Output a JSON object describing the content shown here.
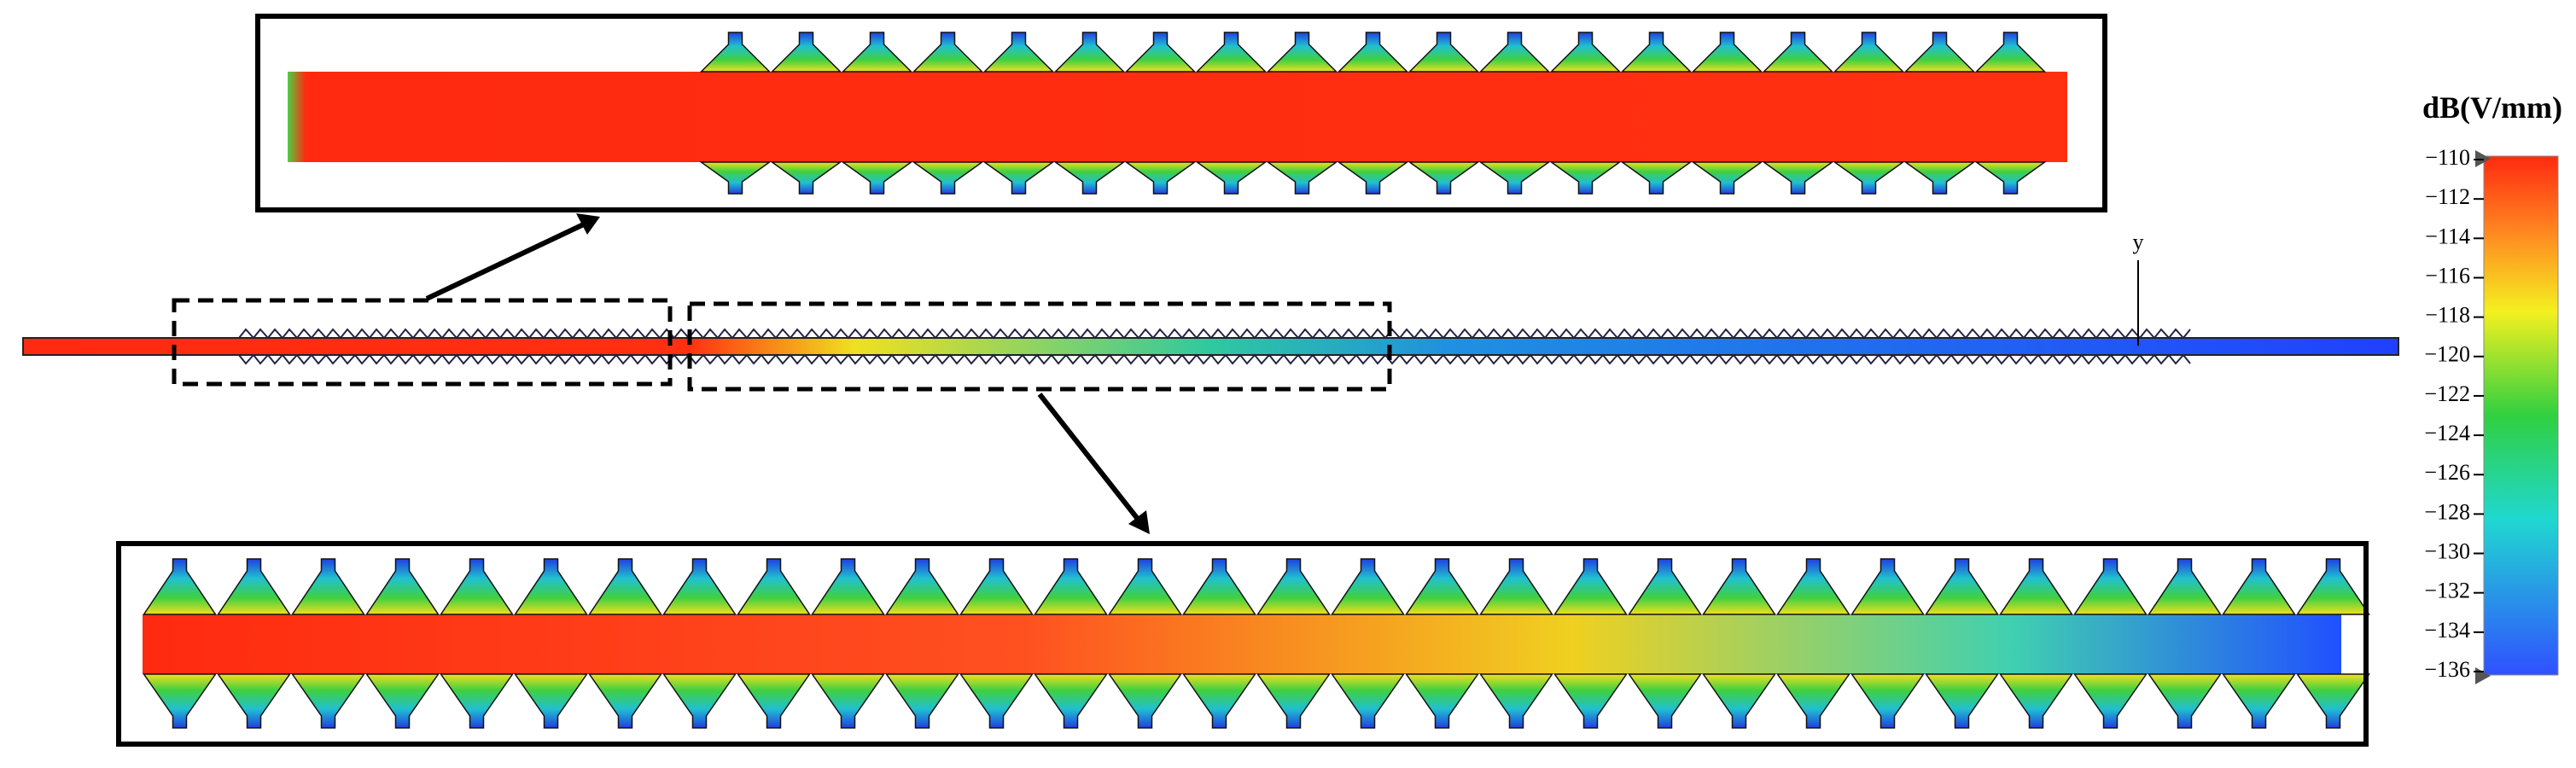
{
  "colorbar": {
    "title": "dB(V/mm)",
    "ticks": [
      {
        "value": -110,
        "label": "−110"
      },
      {
        "value": -112,
        "label": "−112"
      },
      {
        "value": -114,
        "label": "−114"
      },
      {
        "value": -116,
        "label": "−116"
      },
      {
        "value": -118,
        "label": "−118"
      },
      {
        "value": -120,
        "label": "−120"
      },
      {
        "value": -122,
        "label": "−122"
      },
      {
        "value": -124,
        "label": "−124"
      },
      {
        "value": -126,
        "label": "−126"
      },
      {
        "value": -128,
        "label": "−128"
      },
      {
        "value": -130,
        "label": "−130"
      },
      {
        "value": -132,
        "label": "−132"
      },
      {
        "value": -134,
        "label": "−134"
      },
      {
        "value": -136,
        "label": "−136"
      }
    ]
  },
  "annotation": {
    "label": "y"
  }
}
